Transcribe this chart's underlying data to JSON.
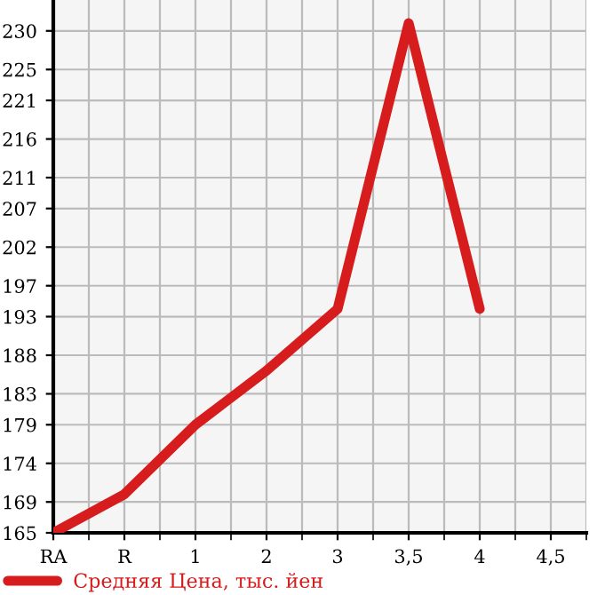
{
  "chart_data": {
    "type": "line",
    "categories": [
      "RA",
      "R",
      "1",
      "2",
      "3",
      "3,5",
      "4",
      "4,5"
    ],
    "series": [
      {
        "name": "Средняя Цена, тыс. йен",
        "color": "#d61c1c",
        "values": [
          165,
          170,
          179,
          186,
          194,
          231,
          194,
          null
        ]
      }
    ],
    "ylim": [
      165,
      234
    ],
    "yticks": [
      165,
      169,
      174,
      179,
      183,
      188,
      193,
      197,
      202,
      207,
      211,
      216,
      221,
      225,
      230
    ],
    "grid": true,
    "legend": "bottom",
    "marker": "none",
    "line_style": "solid"
  }
}
